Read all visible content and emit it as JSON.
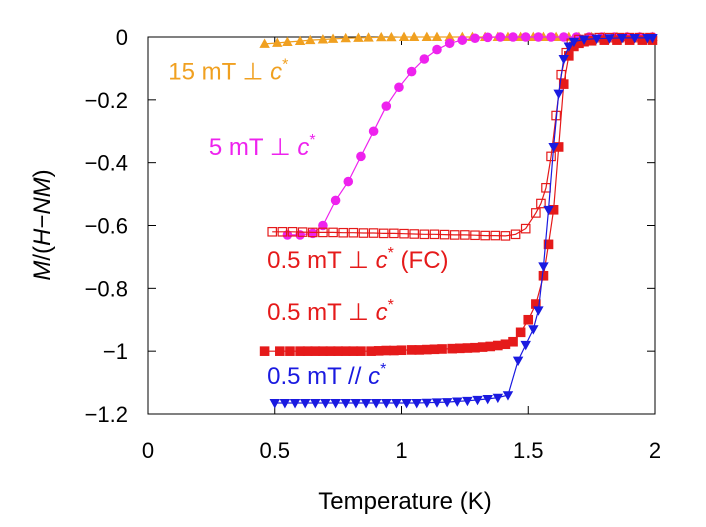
{
  "chart_data": {
    "type": "scatter",
    "xlabel": "Temperature (K)",
    "ylabel": "M/(H−NM)",
    "xlim": [
      0,
      2
    ],
    "ylim": [
      -1.2,
      0
    ],
    "xticks": [
      0,
      0.5,
      1,
      1.5,
      2
    ],
    "xtick_labels": [
      "0",
      "0.5",
      "1",
      "1.5",
      "2"
    ],
    "yticks": [
      0,
      -0.2,
      -0.4,
      -0.6,
      -0.8,
      -1,
      -1.2
    ],
    "ytick_labels": [
      "0",
      "−0.2",
      "−0.4",
      "−0.6",
      "−0.8",
      "−1",
      "−1.2"
    ],
    "grid": false,
    "legend": "none",
    "series": [
      {
        "name": "15 mT ⊥ c*",
        "color": "#f0a020",
        "marker": "triangle-up",
        "filled": true,
        "points": [
          [
            0.46,
            -0.022
          ],
          [
            0.51,
            -0.019
          ],
          [
            0.55,
            -0.016
          ],
          [
            0.6,
            -0.013
          ],
          [
            0.64,
            -0.01
          ],
          [
            0.69,
            -0.008
          ],
          [
            0.73,
            -0.006
          ],
          [
            0.78,
            -0.004
          ],
          [
            0.83,
            -0.003
          ],
          [
            0.87,
            -0.002
          ],
          [
            0.92,
            -0.001
          ],
          [
            0.96,
            -0.001
          ],
          [
            1.01,
            0
          ],
          [
            1.05,
            0
          ],
          [
            1.1,
            0
          ],
          [
            1.14,
            0
          ],
          [
            1.19,
            0
          ],
          [
            1.24,
            0
          ],
          [
            1.28,
            0
          ],
          [
            1.33,
            0
          ],
          [
            1.38,
            0
          ],
          [
            1.42,
            0
          ],
          [
            1.47,
            0
          ],
          [
            1.52,
            0
          ],
          [
            1.56,
            0
          ],
          [
            1.61,
            0
          ],
          [
            1.66,
            0
          ],
          [
            1.7,
            0
          ],
          [
            1.75,
            0
          ],
          [
            1.8,
            0
          ],
          [
            1.85,
            0
          ],
          [
            1.89,
            0
          ],
          [
            1.94,
            0
          ],
          [
            1.99,
            0
          ]
        ]
      },
      {
        "name": "5 mT ⊥ c*",
        "color": "#ee22ee",
        "marker": "circle",
        "filled": true,
        "points": [
          [
            0.55,
            -0.63
          ],
          [
            0.6,
            -0.63
          ],
          [
            0.65,
            -0.625
          ],
          [
            0.69,
            -0.6
          ],
          [
            0.74,
            -0.52
          ],
          [
            0.79,
            -0.46
          ],
          [
            0.84,
            -0.38
          ],
          [
            0.89,
            -0.3
          ],
          [
            0.94,
            -0.22
          ],
          [
            0.99,
            -0.16
          ],
          [
            1.04,
            -0.11
          ],
          [
            1.09,
            -0.07
          ],
          [
            1.14,
            -0.04
          ],
          [
            1.19,
            -0.02
          ],
          [
            1.24,
            -0.01
          ],
          [
            1.29,
            -0.004
          ],
          [
            1.34,
            -0.001
          ],
          [
            1.39,
            0
          ],
          [
            1.44,
            0
          ],
          [
            1.49,
            0
          ],
          [
            1.54,
            0
          ],
          [
            1.59,
            0
          ],
          [
            1.64,
            0
          ],
          [
            1.69,
            0
          ],
          [
            1.74,
            0
          ],
          [
            1.79,
            0
          ],
          [
            1.84,
            0
          ],
          [
            1.89,
            0
          ],
          [
            1.94,
            0
          ],
          [
            1.99,
            0
          ]
        ]
      },
      {
        "name": "0.5 mT ⊥ c* (FC)",
        "color": "#e51a1a",
        "marker": "square",
        "filled": false,
        "points": [
          [
            0.49,
            -0.62
          ],
          [
            0.53,
            -0.62
          ],
          [
            0.57,
            -0.62
          ],
          [
            0.61,
            -0.621
          ],
          [
            0.65,
            -0.622
          ],
          [
            0.69,
            -0.622
          ],
          [
            0.73,
            -0.622
          ],
          [
            0.77,
            -0.623
          ],
          [
            0.81,
            -0.623
          ],
          [
            0.85,
            -0.624
          ],
          [
            0.89,
            -0.624
          ],
          [
            0.93,
            -0.625
          ],
          [
            0.97,
            -0.625
          ],
          [
            1.01,
            -0.626
          ],
          [
            1.05,
            -0.627
          ],
          [
            1.09,
            -0.628
          ],
          [
            1.13,
            -0.628
          ],
          [
            1.17,
            -0.629
          ],
          [
            1.21,
            -0.63
          ],
          [
            1.25,
            -0.63
          ],
          [
            1.29,
            -0.631
          ],
          [
            1.33,
            -0.632
          ],
          [
            1.37,
            -0.632
          ],
          [
            1.41,
            -0.633
          ],
          [
            1.45,
            -0.628
          ],
          [
            1.49,
            -0.61
          ],
          [
            1.53,
            -0.56
          ],
          [
            1.55,
            -0.53
          ],
          [
            1.57,
            -0.48
          ],
          [
            1.59,
            -0.38
          ],
          [
            1.61,
            -0.25
          ],
          [
            1.63,
            -0.12
          ],
          [
            1.65,
            -0.05
          ],
          [
            1.67,
            -0.02
          ],
          [
            1.7,
            -0.008
          ],
          [
            1.74,
            -0.004
          ],
          [
            1.78,
            -0.002
          ],
          [
            1.82,
            -0.002
          ],
          [
            1.86,
            -0.002
          ],
          [
            1.9,
            -0.002
          ],
          [
            1.94,
            -0.002
          ],
          [
            1.98,
            -0.002
          ]
        ]
      },
      {
        "name": "0.5 mT ⊥ c*",
        "color": "#e51a1a",
        "marker": "square",
        "filled": true,
        "points": [
          [
            0.46,
            -1.0
          ],
          [
            0.52,
            -1.0
          ],
          [
            0.56,
            -1.0
          ],
          [
            0.6,
            -1.0
          ],
          [
            0.63,
            -1.0
          ],
          [
            0.66,
            -1.0
          ],
          [
            0.69,
            -1.0
          ],
          [
            0.72,
            -1.0
          ],
          [
            0.75,
            -1.0
          ],
          [
            0.78,
            -1.0
          ],
          [
            0.81,
            -1.0
          ],
          [
            0.84,
            -1.0
          ],
          [
            0.88,
            -1.0
          ],
          [
            0.91,
            -0.999
          ],
          [
            0.94,
            -0.998
          ],
          [
            0.97,
            -0.998
          ],
          [
            1.0,
            -0.997
          ],
          [
            1.04,
            -0.996
          ],
          [
            1.07,
            -0.996
          ],
          [
            1.1,
            -0.995
          ],
          [
            1.13,
            -0.994
          ],
          [
            1.16,
            -0.993
          ],
          [
            1.2,
            -0.992
          ],
          [
            1.23,
            -0.991
          ],
          [
            1.26,
            -0.99
          ],
          [
            1.29,
            -0.989
          ],
          [
            1.32,
            -0.987
          ],
          [
            1.35,
            -0.985
          ],
          [
            1.38,
            -0.982
          ],
          [
            1.41,
            -0.978
          ],
          [
            1.44,
            -0.97
          ],
          [
            1.47,
            -0.94
          ],
          [
            1.5,
            -0.9
          ],
          [
            1.53,
            -0.85
          ],
          [
            1.56,
            -0.76
          ],
          [
            1.58,
            -0.66
          ],
          [
            1.6,
            -0.55
          ],
          [
            1.62,
            -0.35
          ],
          [
            1.64,
            -0.15
          ],
          [
            1.66,
            -0.06
          ],
          [
            1.68,
            -0.03
          ],
          [
            1.7,
            -0.02
          ],
          [
            1.72,
            -0.015
          ],
          [
            1.75,
            -0.012
          ],
          [
            1.8,
            -0.01
          ],
          [
            1.85,
            -0.01
          ],
          [
            1.9,
            -0.01
          ],
          [
            1.95,
            -0.01
          ],
          [
            1.99,
            -0.01
          ]
        ]
      },
      {
        "name": "0.5 mT // c*",
        "color": "#1a1ae0",
        "marker": "triangle-down",
        "filled": true,
        "points": [
          [
            0.5,
            -1.165
          ],
          [
            0.54,
            -1.165
          ],
          [
            0.58,
            -1.165
          ],
          [
            0.62,
            -1.165
          ],
          [
            0.66,
            -1.165
          ],
          [
            0.7,
            -1.165
          ],
          [
            0.74,
            -1.165
          ],
          [
            0.78,
            -1.165
          ],
          [
            0.82,
            -1.165
          ],
          [
            0.86,
            -1.165
          ],
          [
            0.9,
            -1.165
          ],
          [
            0.94,
            -1.165
          ],
          [
            0.98,
            -1.165
          ],
          [
            1.02,
            -1.165
          ],
          [
            1.06,
            -1.165
          ],
          [
            1.1,
            -1.164
          ],
          [
            1.14,
            -1.163
          ],
          [
            1.18,
            -1.162
          ],
          [
            1.22,
            -1.16
          ],
          [
            1.26,
            -1.158
          ],
          [
            1.3,
            -1.155
          ],
          [
            1.34,
            -1.152
          ],
          [
            1.38,
            -1.148
          ],
          [
            1.42,
            -1.14
          ],
          [
            1.46,
            -1.03
          ],
          [
            1.49,
            -0.98
          ],
          [
            1.52,
            -0.93
          ],
          [
            1.54,
            -0.87
          ],
          [
            1.56,
            -0.73
          ],
          [
            1.58,
            -0.55
          ],
          [
            1.6,
            -0.35
          ],
          [
            1.62,
            -0.18
          ],
          [
            1.64,
            -0.07
          ],
          [
            1.66,
            -0.03
          ],
          [
            1.68,
            -0.015
          ],
          [
            1.72,
            -0.008
          ],
          [
            1.77,
            -0.005
          ],
          [
            1.82,
            -0.004
          ],
          [
            1.87,
            -0.003
          ],
          [
            1.92,
            -0.003
          ],
          [
            1.97,
            -0.003
          ],
          [
            1.99,
            -0.003
          ]
        ]
      }
    ],
    "annotations": [
      {
        "series": 0,
        "prefix": "15 mT ⊥ ",
        "sym": "c",
        "sup": "*",
        "suffix": "",
        "color": "#f0a020",
        "at": [
          0.08,
          -0.135
        ]
      },
      {
        "series": 1,
        "prefix": "5 mT ⊥ ",
        "sym": "c",
        "sup": "*",
        "suffix": "",
        "color": "#ee22ee",
        "at": [
          0.24,
          -0.375
        ]
      },
      {
        "series": 2,
        "prefix": "0.5 mT ⊥ ",
        "sym": "c",
        "sup": "*",
        "suffix": " (FC)",
        "color": "#e51a1a",
        "at": [
          0.47,
          -0.735
        ]
      },
      {
        "series": 3,
        "prefix": "0.5 mT ⊥ ",
        "sym": "c",
        "sup": "*",
        "suffix": "",
        "color": "#e51a1a",
        "at": [
          0.47,
          -0.9
        ]
      },
      {
        "series": 4,
        "prefix": "0.5 mT // ",
        "sym": "c",
        "sup": "*",
        "suffix": "",
        "color": "#1a1ae0",
        "at": [
          0.47,
          -1.105
        ]
      }
    ]
  }
}
